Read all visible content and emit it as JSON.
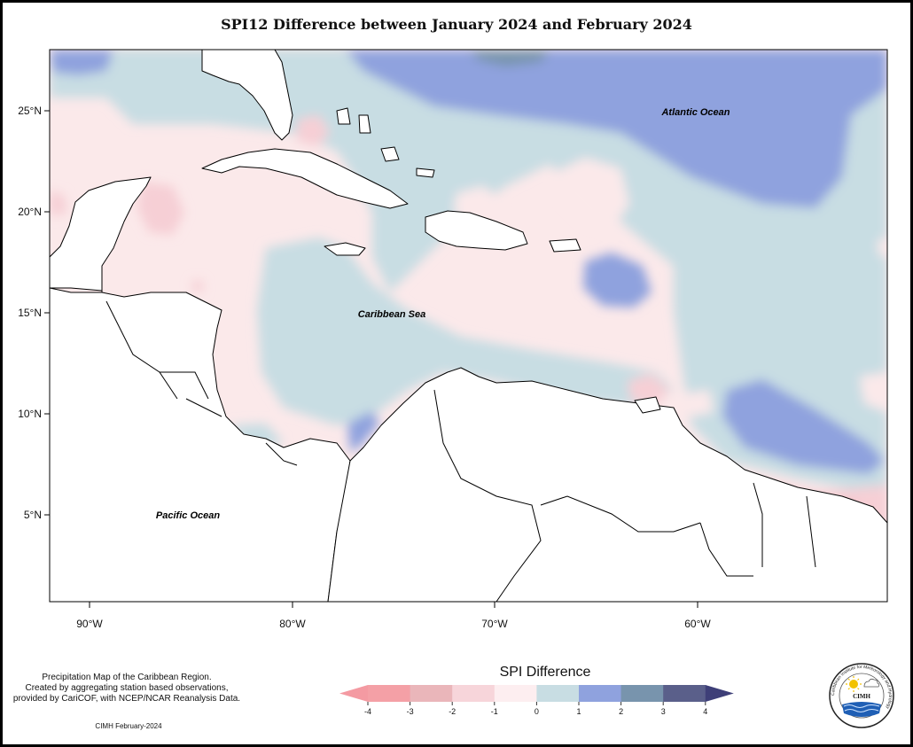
{
  "title": "SPI12 Difference between January 2024 and February 2024",
  "map": {
    "region": "Caribbean",
    "lat_ticks": [
      "25°N",
      "20°N",
      "15°N",
      "10°N",
      "5°N"
    ],
    "lon_ticks": [
      "90°W",
      "80°W",
      "70°W",
      "60°W"
    ],
    "labels": {
      "atlantic": "Atlantic Ocean",
      "caribbean": "Caribbean Sea",
      "pacific": "Pacific Ocean"
    },
    "colors": {
      "spi_m1_0": "#fbe9ea",
      "spi_0_1": "#c8dde3",
      "spi_1_2": "#8fa2de",
      "spi_2_3": "#7894ad",
      "spi_m2_m1": "#f6cfd5",
      "spi_m3_m2": "#eba7ad",
      "land": "#ffffff"
    }
  },
  "legend": {
    "title": "SPI Difference",
    "ticks": [
      "-4",
      "-3",
      "-2",
      "-1",
      "0",
      "1",
      "2",
      "3",
      "4"
    ],
    "colors": [
      "#f4a0a6",
      "#eab6ba",
      "#f7d5da",
      "#fdeef0",
      "#c8dde3",
      "#8fa2de",
      "#7894ad",
      "#5a5f8a"
    ],
    "under_color": "#f49aa2",
    "over_color": "#3e3f78"
  },
  "footnote": {
    "lines": [
      "Precipitation Map of the Caribbean Region.",
      "Created by aggregating station based observations,",
      "provided by CariCOF, with NCEP/NCAR Reanalysis Data."
    ],
    "credit": "CIMH February-2024"
  },
  "logo": {
    "text": "CIMH",
    "ring_text": "Caribbean Institute for Meteorology and Hydrology"
  }
}
